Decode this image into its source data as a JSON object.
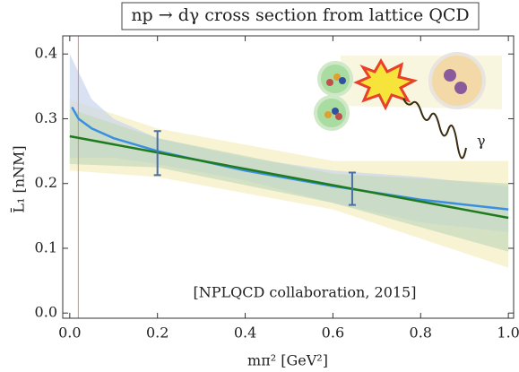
{
  "chart_data": {
    "type": "line",
    "title": "np → dγ cross section from lattice QCD",
    "x_label": "mπ² [GeV²]",
    "y_label": "L̄₁ [nNM]",
    "annotation": "[NPLQCD collaboration, 2015]",
    "illustration_label": "γ",
    "xlim": [
      -0.016,
      1.012
    ],
    "ylim": [
      -0.008,
      0.428
    ],
    "xticks": [
      {
        "value": 0,
        "label": "0.0"
      },
      0.2,
      0.4,
      0.6,
      0.8,
      {
        "value": 1,
        "label": "1.0"
      }
    ],
    "yticks": [
      {
        "value": 0,
        "label": "0.0"
      },
      0.1,
      0.2,
      0.3,
      0.4
    ],
    "vline": {
      "x": 0.0195,
      "color": "#f08080"
    },
    "bands": [
      {
        "color": "#f3eec0",
        "x": [
          0,
          0.2,
          0.6,
          1.0
        ],
        "upper": [
          0.33,
          0.285,
          0.235,
          0.235
        ],
        "lower": [
          0.22,
          0.21,
          0.16,
          0.07
        ]
      },
      {
        "color": "#c9d6ec",
        "x": [
          0,
          0.05,
          0.1,
          0.2,
          0.4,
          0.6,
          0.8,
          1.0
        ],
        "upper": [
          0.4,
          0.33,
          0.3,
          0.27,
          0.24,
          0.22,
          0.21,
          0.195
        ],
        "lower": [
          0.24,
          0.24,
          0.24,
          0.23,
          0.205,
          0.17,
          0.14,
          0.125
        ]
      },
      {
        "color": "#c4d8bc",
        "x": [
          0,
          0.2,
          0.6,
          1.0
        ],
        "upper": [
          0.315,
          0.27,
          0.215,
          0.2
        ],
        "lower": [
          0.23,
          0.225,
          0.17,
          0.095
        ]
      }
    ],
    "series": [
      {
        "color": "#3a8fe0",
        "x": [
          0.005,
          0.02,
          0.05,
          0.1,
          0.2,
          0.4,
          0.6,
          0.8,
          1.0
        ],
        "values": [
          0.318,
          0.3,
          0.285,
          0.27,
          0.25,
          0.22,
          0.196,
          0.175,
          0.16
        ]
      },
      {
        "color": "#1e7b1e",
        "x": [
          0,
          1.0
        ],
        "values": [
          0.273,
          0.147
        ]
      }
    ],
    "points": {
      "color": "#4a6fa5",
      "x": [
        0.2,
        0.644
      ],
      "values": [
        0.247,
        0.192
      ],
      "errors": [
        0.034,
        0.025
      ]
    }
  }
}
